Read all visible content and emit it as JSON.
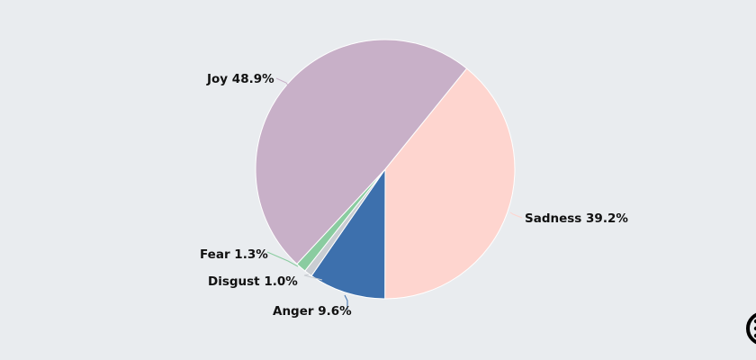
{
  "chart_data": {
    "type": "pie",
    "title": "",
    "slices": [
      {
        "label": "Joy",
        "value": 48.9,
        "text": "Joy 48.9%",
        "color": "#c8b0c8"
      },
      {
        "label": "Sadness",
        "value": 39.2,
        "text": "Sadness 39.2%",
        "color": "#fed5cf"
      },
      {
        "label": "Anger",
        "value": 9.6,
        "text": "Anger 9.6%",
        "color": "#3d70ad"
      },
      {
        "label": "Disgust",
        "value": 1.0,
        "text": "Disgust 1.0%",
        "color": "#c9cdd2"
      },
      {
        "label": "Fear",
        "value": 1.3,
        "text": "Fear 1.3%",
        "color": "#8acca0"
      }
    ]
  },
  "menu_icon": "context-menu-icon"
}
